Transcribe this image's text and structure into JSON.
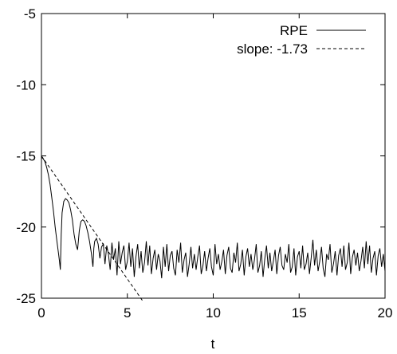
{
  "chart_data": {
    "type": "line",
    "title": "",
    "xlabel": "t",
    "ylabel": "",
    "xlim": [
      0,
      20
    ],
    "ylim": [
      -25,
      -5
    ],
    "xticks": [
      0,
      5,
      10,
      15,
      20
    ],
    "yticks": [
      -25,
      -20,
      -15,
      -10,
      -5
    ],
    "grid": false,
    "legend_position": "top-right",
    "series": [
      {
        "name": "RPE",
        "style": "solid",
        "color": "#000000",
        "x": [
          0,
          0.1,
          0.2,
          0.3,
          0.4,
          0.5,
          0.6,
          0.7,
          0.8,
          0.9,
          1.0,
          1.05,
          1.1,
          1.15,
          1.2,
          1.3,
          1.4,
          1.5,
          1.6,
          1.7,
          1.8,
          1.9,
          2.0,
          2.1,
          2.15,
          2.2,
          2.25,
          2.3,
          2.4,
          2.5,
          2.6,
          2.7,
          2.8,
          2.9,
          3.0,
          3.05,
          3.1,
          3.15,
          3.2,
          3.3,
          3.4,
          3.5,
          3.6,
          3.7,
          3.8,
          3.9,
          4.0,
          4.1,
          4.2,
          4.3,
          4.4,
          4.5,
          4.6,
          4.7,
          4.8,
          4.9,
          5.0,
          5.1,
          5.2,
          5.3,
          5.4,
          5.5,
          5.6,
          5.7,
          5.8,
          5.9,
          6.0,
          6.1,
          6.2,
          6.3,
          6.4,
          6.5,
          6.6,
          6.7,
          6.8,
          6.9,
          7.0,
          7.1,
          7.2,
          7.3,
          7.4,
          7.5,
          7.6,
          7.7,
          7.8,
          7.9,
          8.0,
          8.1,
          8.2,
          8.3,
          8.4,
          8.5,
          8.6,
          8.7,
          8.8,
          8.9,
          9.0,
          9.1,
          9.2,
          9.3,
          9.4,
          9.5,
          9.6,
          9.7,
          9.8,
          9.9,
          10.0,
          10.1,
          10.2,
          10.3,
          10.4,
          10.5,
          10.6,
          10.7,
          10.8,
          10.9,
          11.0,
          11.1,
          11.2,
          11.3,
          11.4,
          11.5,
          11.6,
          11.7,
          11.8,
          11.9,
          12.0,
          12.1,
          12.2,
          12.3,
          12.4,
          12.5,
          12.6,
          12.7,
          12.8,
          12.9,
          13.0,
          13.1,
          13.2,
          13.3,
          13.4,
          13.5,
          13.6,
          13.7,
          13.8,
          13.9,
          14.0,
          14.1,
          14.2,
          14.3,
          14.4,
          14.5,
          14.6,
          14.7,
          14.8,
          14.9,
          15.0,
          15.1,
          15.2,
          15.3,
          15.4,
          15.5,
          15.6,
          15.7,
          15.8,
          15.9,
          16.0,
          16.1,
          16.2,
          16.3,
          16.4,
          16.5,
          16.6,
          16.7,
          16.8,
          16.9,
          17.0,
          17.1,
          17.2,
          17.3,
          17.4,
          17.5,
          17.6,
          17.7,
          17.8,
          17.9,
          18.0,
          18.1,
          18.2,
          18.3,
          18.4,
          18.5,
          18.6,
          18.7,
          18.8,
          18.9,
          19.0,
          19.1,
          19.2,
          19.3,
          19.4,
          19.5,
          19.6,
          19.7,
          19.8,
          19.9,
          20.0
        ],
        "y": [
          -15.1,
          -15.2,
          -15.4,
          -15.8,
          -16.3,
          -17.0,
          -17.9,
          -18.9,
          -20.0,
          -21.0,
          -21.9,
          -22.4,
          -23.0,
          -20.5,
          -19.0,
          -18.2,
          -18.0,
          -18.1,
          -18.3,
          -18.8,
          -19.5,
          -20.5,
          -21.2,
          -21.6,
          -21.0,
          -20.3,
          -19.9,
          -19.6,
          -19.5,
          -19.6,
          -19.9,
          -20.4,
          -21.0,
          -21.8,
          -22.8,
          -21.5,
          -21.0,
          -20.9,
          -20.8,
          -21.2,
          -22.2,
          -21.4,
          -21.2,
          -22.6,
          -21.3,
          -21.9,
          -23.0,
          -21.1,
          -22.3,
          -21.5,
          -23.4,
          -21.0,
          -22.6,
          -21.8,
          -21.3,
          -23.0,
          -22.4,
          -21.1,
          -22.8,
          -21.5,
          -23.5,
          -22.1,
          -21.2,
          -22.9,
          -21.7,
          -23.2,
          -22.5,
          -21.0,
          -22.7,
          -21.3,
          -23.3,
          -22.2,
          -21.6,
          -23.0,
          -21.9,
          -22.4,
          -23.6,
          -21.4,
          -22.8,
          -21.2,
          -23.1,
          -22.0,
          -21.7,
          -22.9,
          -23.4,
          -21.6,
          -22.5,
          -21.1,
          -23.2,
          -22.3,
          -21.8,
          -23.5,
          -22.6,
          -21.4,
          -22.9,
          -21.9,
          -23.0,
          -22.1,
          -21.3,
          -23.3,
          -22.7,
          -21.7,
          -23.1,
          -22.2,
          -21.5,
          -22.8,
          -23.4,
          -21.2,
          -22.6,
          -21.9,
          -23.0,
          -22.4,
          -21.6,
          -23.3,
          -22.0,
          -21.4,
          -22.9,
          -23.2,
          -21.8,
          -22.5,
          -21.1,
          -23.1,
          -22.6,
          -21.6,
          -23.4,
          -22.1,
          -21.5,
          -22.8,
          -21.9,
          -23.0,
          -22.3,
          -21.2,
          -23.2,
          -22.7,
          -21.7,
          -23.5,
          -22.2,
          -21.3,
          -22.9,
          -21.8,
          -23.1,
          -22.4,
          -21.6,
          -23.3,
          -22.0,
          -21.4,
          -22.7,
          -23.0,
          -21.9,
          -22.5,
          -21.2,
          -23.2,
          -22.8,
          -21.5,
          -23.4,
          -22.1,
          -21.7,
          -22.9,
          -21.3,
          -23.0,
          -22.6,
          -21.8,
          -23.3,
          -22.2,
          -20.9,
          -22.7,
          -21.6,
          -23.1,
          -22.4,
          -21.4,
          -22.9,
          -23.5,
          -21.9,
          -22.3,
          -21.2,
          -23.2,
          -22.6,
          -21.7,
          -23.4,
          -22.0,
          -21.5,
          -22.8,
          -21.3,
          -23.0,
          -22.5,
          -21.1,
          -23.3,
          -22.1,
          -21.6,
          -22.7,
          -21.8,
          -23.1,
          -22.4,
          -21.4,
          -22.9,
          -21.0,
          -22.6,
          -21.3,
          -23.2,
          -22.2,
          -21.7,
          -23.4,
          -22.0,
          -21.5,
          -22.8,
          -21.9,
          -23.1
        ]
      },
      {
        "name": "slope: -1.73",
        "style": "dashed",
        "color": "#000000",
        "x": [
          0,
          5.9
        ],
        "y": [
          -15.0,
          -25.2
        ]
      }
    ]
  }
}
